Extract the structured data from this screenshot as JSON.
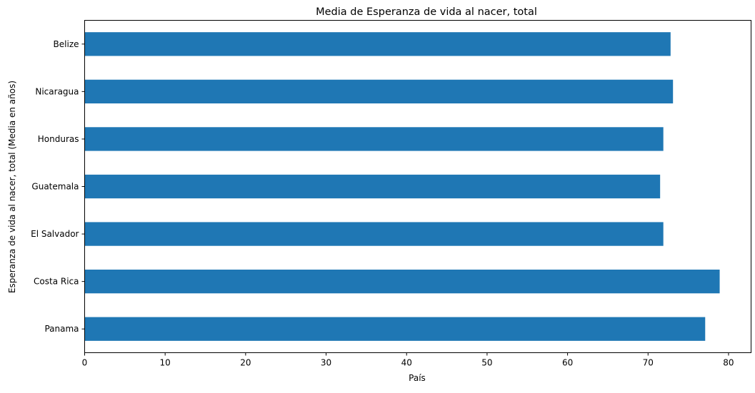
{
  "chart_data": {
    "type": "bar",
    "orientation": "horizontal",
    "title": "Media de Esperanza de vida al nacer, total",
    "xlabel": "País",
    "ylabel": "Esperanza de vida al nacer, total (Media en años)",
    "categories": [
      "Panama",
      "Costa Rica",
      "El Salvador",
      "Guatemala",
      "Honduras",
      "Nicaragua",
      "Belize"
    ],
    "values": [
      77.1,
      78.9,
      71.9,
      71.5,
      71.9,
      73.1,
      72.8
    ],
    "xlim": [
      0,
      82.8
    ],
    "xticks": [
      0,
      10,
      20,
      30,
      40,
      50,
      60,
      70,
      80
    ],
    "grid": false,
    "bar_color": "#1f77b4"
  }
}
